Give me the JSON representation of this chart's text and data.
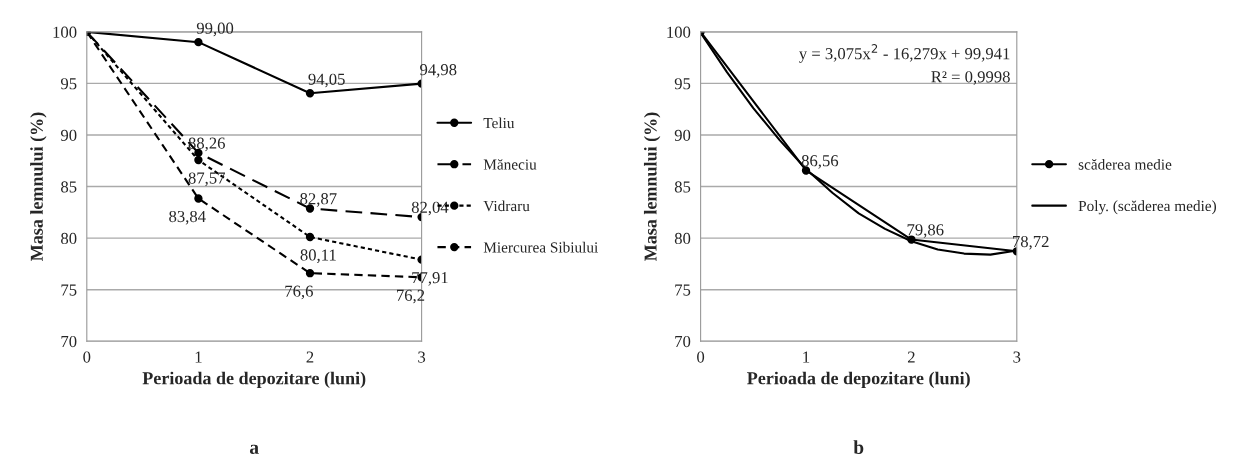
{
  "chart_data": [
    {
      "type": "line",
      "x": [
        0,
        1,
        2,
        3
      ],
      "xlim": [
        0,
        3
      ],
      "xticks": [
        0,
        1,
        2,
        3
      ],
      "ylim": [
        70,
        100
      ],
      "yticks": [
        70,
        75,
        80,
        85,
        90,
        95,
        100
      ],
      "xlabel": "Perioada de depozitare (luni)",
      "ylabel": "Masa lemnului (%)",
      "grid": "y",
      "legend": "right",
      "marker": "circle",
      "annotations": [
        "a"
      ],
      "series": [
        {
          "name": "Teliu",
          "color": "#000000",
          "line_style": "solid",
          "values": [
            100,
            99.0,
            94.05,
            94.98
          ],
          "value_labels": [
            null,
            "99,00",
            "94,05",
            "94,98"
          ]
        },
        {
          "name": "Măneciu",
          "color": "#000000",
          "line_style": "dashed",
          "values": [
            100,
            88.26,
            82.87,
            82.04
          ],
          "value_labels": [
            null,
            "88,26",
            "82,87",
            "82,04"
          ]
        },
        {
          "name": "Vidraru",
          "color": "#000000",
          "line_style": "dotted",
          "values": [
            100,
            87.57,
            80.11,
            77.91
          ],
          "value_labels": [
            null,
            "87,57",
            "80,11",
            "77,91"
          ]
        },
        {
          "name": "Miercurea Sibiului",
          "color": "#000000",
          "line_style": "dashed",
          "values": [
            100,
            83.84,
            76.6,
            76.2
          ],
          "value_labels": [
            null,
            "83,84",
            "76,6",
            "76,2"
          ]
        }
      ]
    },
    {
      "type": "line",
      "x": [
        0,
        1,
        2,
        3
      ],
      "xlim": [
        0,
        3
      ],
      "xticks": [
        0,
        1,
        2,
        3
      ],
      "ylim": [
        70,
        100
      ],
      "yticks": [
        70,
        75,
        80,
        85,
        90,
        95,
        100
      ],
      "xlabel": "Perioada de depozitare (luni)",
      "ylabel": "Masa lemnului (%)",
      "grid": "y",
      "legend": "right",
      "marker": "circle",
      "annotations": [
        "y = 3,075x$^{2}$ - 16,279x + 99,941",
        "R² = 0,9998",
        "b"
      ],
      "series": [
        {
          "name": "scăderea medie",
          "color": "#000000",
          "line_style": "solid",
          "values": [
            100,
            86.56,
            79.86,
            78.72
          ],
          "value_labels": [
            null,
            "86,56",
            "79,86",
            "78,72"
          ]
        },
        {
          "name": "Poly. (scăderea medie)",
          "color": "#000000",
          "line_style": "solid",
          "marker": "none",
          "x": [
            0,
            0.25,
            0.5,
            0.75,
            1,
            1.25,
            1.5,
            1.75,
            2,
            2.25,
            2.5,
            2.75,
            3
          ],
          "values": [
            99.9,
            96.1,
            92.6,
            89.5,
            86.7,
            84.4,
            82.4,
            80.9,
            79.7,
            78.9,
            78.5,
            78.4,
            78.8
          ]
        }
      ]
    }
  ]
}
